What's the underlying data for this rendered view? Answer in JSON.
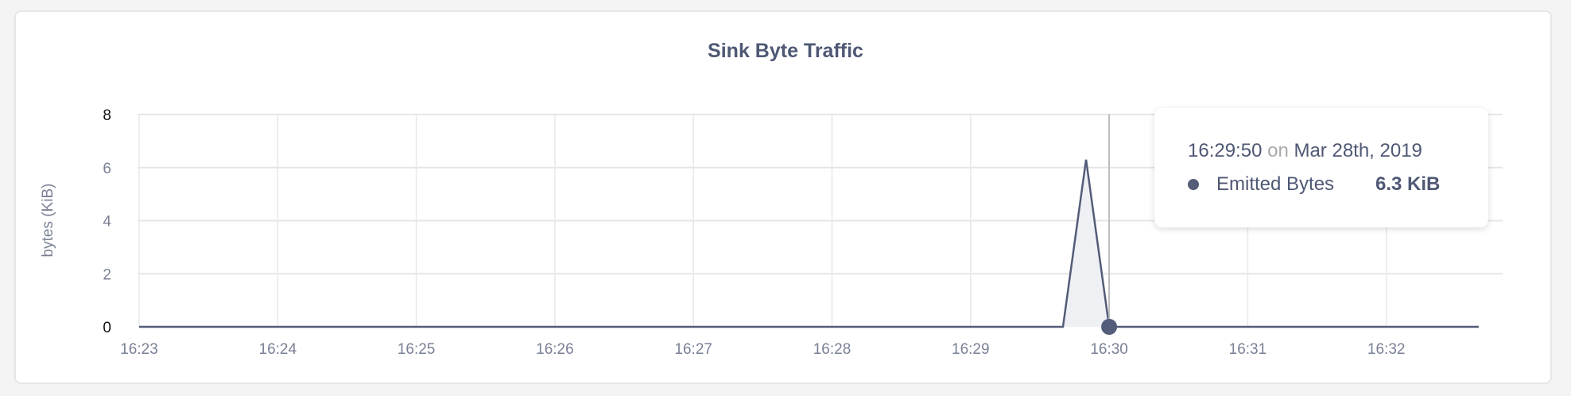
{
  "chart_data": {
    "type": "area",
    "title": "Sink Byte Traffic",
    "ylabel": "bytes (KiB)",
    "xlabel": "",
    "ylim": [
      0,
      8
    ],
    "yticks": [
      "0",
      "2",
      "4",
      "6",
      "8"
    ],
    "xticks": [
      "16:23",
      "16:24",
      "16:25",
      "16:26",
      "16:27",
      "16:28",
      "16:29",
      "16:30",
      "16:31",
      "16:32"
    ],
    "grid": true,
    "series": [
      {
        "name": "Emitted Bytes",
        "color": "#535c78",
        "fill": "#eef0f4",
        "points": [
          [
            "16:23:00",
            0
          ],
          [
            "16:29:40",
            0
          ],
          [
            "16:29:50",
            6.3
          ],
          [
            "16:30:00",
            0
          ],
          [
            "16:32:40",
            0
          ]
        ]
      }
    ],
    "hover_time": "16:30:00"
  },
  "tooltip": {
    "time": "16:29:50",
    "on": "on",
    "date": "Mar 28th, 2019",
    "series_name": "Emitted Bytes",
    "value": "6.3 KiB"
  }
}
